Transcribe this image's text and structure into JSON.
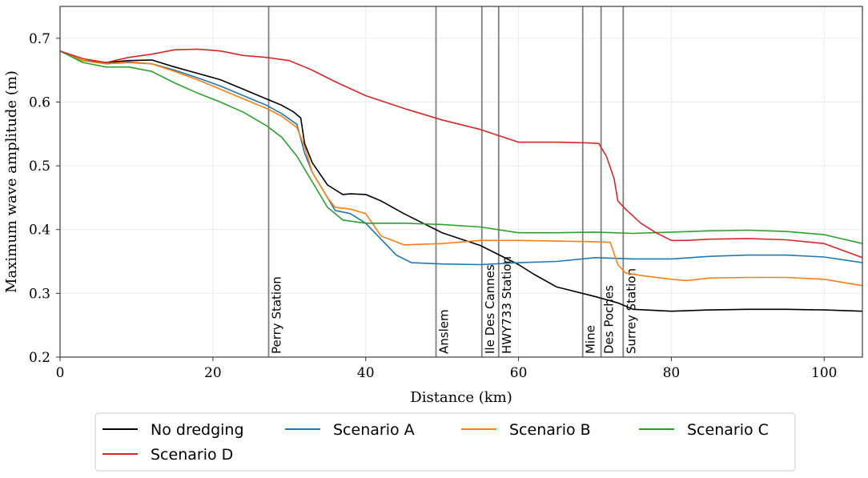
{
  "chart_data": {
    "type": "line",
    "xlabel": "Distance (km)",
    "ylabel": "Maximum wave amplitude (m)",
    "xlim": [
      0,
      105
    ],
    "ylim": [
      0.2,
      0.75
    ],
    "xticks": [
      0,
      20,
      40,
      60,
      80,
      100
    ],
    "yticks": [
      0.2,
      0.3,
      0.4,
      0.5,
      0.6,
      0.7
    ],
    "grid": true,
    "legend_position": "bottom",
    "stations": [
      {
        "name": "Perry Station",
        "x": 27.3
      },
      {
        "name": "Anslem",
        "x": 49.2
      },
      {
        "name": "Ile Des Cannes",
        "x": 55.2
      },
      {
        "name": "HWY733 Station",
        "x": 57.4
      },
      {
        "name": "Mine",
        "x": 68.4
      },
      {
        "name": "Des Poches",
        "x": 70.8
      },
      {
        "name": "Surrey Station",
        "x": 73.7
      }
    ],
    "series": [
      {
        "name": "No dredging",
        "color": "#000000",
        "x": [
          0,
          3,
          6,
          9,
          12,
          15,
          18,
          21,
          24,
          27,
          29,
          30.5,
          31.5,
          32,
          33,
          35,
          37,
          38,
          40,
          42,
          45,
          50,
          55,
          60,
          62,
          65,
          70,
          73,
          75,
          80,
          85,
          90,
          95,
          100,
          105
        ],
        "y": [
          0.68,
          0.665,
          0.662,
          0.665,
          0.666,
          0.655,
          0.645,
          0.635,
          0.62,
          0.605,
          0.595,
          0.585,
          0.575,
          0.535,
          0.505,
          0.47,
          0.455,
          0.456,
          0.455,
          0.445,
          0.425,
          0.395,
          0.375,
          0.345,
          0.33,
          0.31,
          0.295,
          0.285,
          0.275,
          0.272,
          0.274,
          0.275,
          0.275,
          0.274,
          0.272
        ]
      },
      {
        "name": "Scenario A",
        "color": "#1f77b4",
        "x": [
          0,
          3,
          6,
          9,
          12,
          15,
          18,
          21,
          24,
          27,
          29,
          31,
          32,
          33,
          35,
          36,
          38,
          40,
          42,
          44,
          46,
          50,
          55,
          60,
          65,
          70,
          75,
          80,
          85,
          90,
          95,
          100,
          105
        ],
        "y": [
          0.68,
          0.665,
          0.66,
          0.662,
          0.66,
          0.65,
          0.638,
          0.625,
          0.61,
          0.595,
          0.582,
          0.565,
          0.52,
          0.49,
          0.45,
          0.43,
          0.425,
          0.41,
          0.385,
          0.36,
          0.348,
          0.346,
          0.345,
          0.348,
          0.35,
          0.356,
          0.354,
          0.354,
          0.358,
          0.36,
          0.36,
          0.357,
          0.348
        ]
      },
      {
        "name": "Scenario B",
        "color": "#ff7f0e",
        "x": [
          0,
          3,
          6,
          9,
          12,
          15,
          18,
          21,
          24,
          27,
          29,
          31,
          32,
          33,
          35,
          36,
          38,
          40,
          42,
          45,
          50,
          55,
          60,
          65,
          70,
          72,
          73,
          74,
          76,
          80,
          82,
          85,
          90,
          95,
          100,
          105
        ],
        "y": [
          0.68,
          0.665,
          0.66,
          0.663,
          0.66,
          0.648,
          0.635,
          0.62,
          0.605,
          0.59,
          0.578,
          0.56,
          0.53,
          0.49,
          0.45,
          0.435,
          0.432,
          0.425,
          0.39,
          0.376,
          0.378,
          0.383,
          0.383,
          0.382,
          0.381,
          0.38,
          0.345,
          0.332,
          0.328,
          0.322,
          0.32,
          0.324,
          0.325,
          0.325,
          0.322,
          0.312
        ]
      },
      {
        "name": "Scenario C",
        "color": "#2ca02c",
        "x": [
          0,
          3,
          6,
          9,
          12,
          15,
          18,
          21,
          24,
          27,
          29,
          31,
          33,
          35,
          37,
          40,
          45,
          50,
          55,
          60,
          65,
          70,
          75,
          80,
          85,
          90,
          95,
          100,
          105
        ],
        "y": [
          0.68,
          0.662,
          0.655,
          0.655,
          0.648,
          0.63,
          0.614,
          0.6,
          0.584,
          0.563,
          0.545,
          0.515,
          0.475,
          0.435,
          0.415,
          0.41,
          0.41,
          0.408,
          0.404,
          0.395,
          0.395,
          0.396,
          0.394,
          0.396,
          0.398,
          0.399,
          0.397,
          0.392,
          0.378
        ]
      },
      {
        "name": "Scenario D",
        "color": "#d62728",
        "x": [
          0,
          3,
          6,
          9,
          12,
          15,
          18,
          21,
          24,
          27,
          30,
          33,
          36,
          40,
          45,
          50,
          55,
          58,
          60,
          65,
          69,
          70.5,
          71.5,
          72.5,
          73,
          74,
          76,
          78,
          80,
          82,
          85,
          90,
          95,
          100,
          105
        ],
        "y": [
          0.68,
          0.668,
          0.662,
          0.67,
          0.675,
          0.682,
          0.683,
          0.68,
          0.673,
          0.67,
          0.665,
          0.65,
          0.632,
          0.61,
          0.59,
          0.572,
          0.557,
          0.545,
          0.537,
          0.537,
          0.536,
          0.535,
          0.515,
          0.48,
          0.445,
          0.432,
          0.41,
          0.395,
          0.383,
          0.383,
          0.385,
          0.386,
          0.384,
          0.378,
          0.356
        ]
      }
    ]
  }
}
